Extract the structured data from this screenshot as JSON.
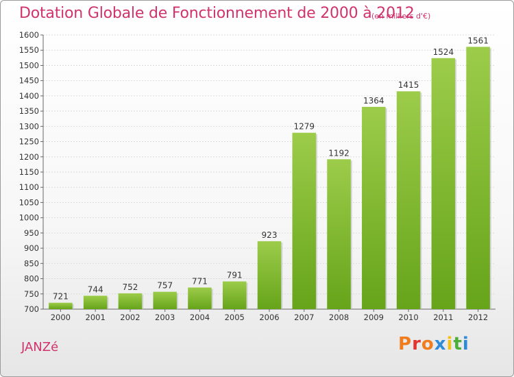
{
  "header": {
    "title": "Dotation Globale de Fonctionnement de 2000 à 2012",
    "unit": "(en milliers d'€)"
  },
  "footer": {
    "commune": "JANZé",
    "logo_text": "Proxiti",
    "logo_colors": [
      "#f07c1d",
      "#e3342f",
      "#f07c1d",
      "#2f8bd8",
      "#f2c21b",
      "#4fae3a",
      "#2f8bd8"
    ]
  },
  "chart_data": {
    "type": "bar",
    "title": "Dotation Globale de Fonctionnement de 2000 à 2012",
    "xlabel": "",
    "ylabel": "",
    "categories": [
      "2000",
      "2001",
      "2002",
      "2003",
      "2004",
      "2005",
      "2006",
      "2007",
      "2008",
      "2009",
      "2010",
      "2011",
      "2012"
    ],
    "values": [
      721,
      744,
      752,
      757,
      771,
      791,
      923,
      1279,
      1192,
      1364,
      1415,
      1524,
      1561
    ],
    "ylim": [
      700,
      1600
    ],
    "yticks": [
      700,
      750,
      800,
      850,
      900,
      950,
      1000,
      1050,
      1100,
      1150,
      1200,
      1250,
      1300,
      1350,
      1400,
      1450,
      1500,
      1550,
      1600
    ],
    "grid": true,
    "bar_color_top": "#9ccc4a",
    "bar_color_bottom": "#66a41a"
  }
}
